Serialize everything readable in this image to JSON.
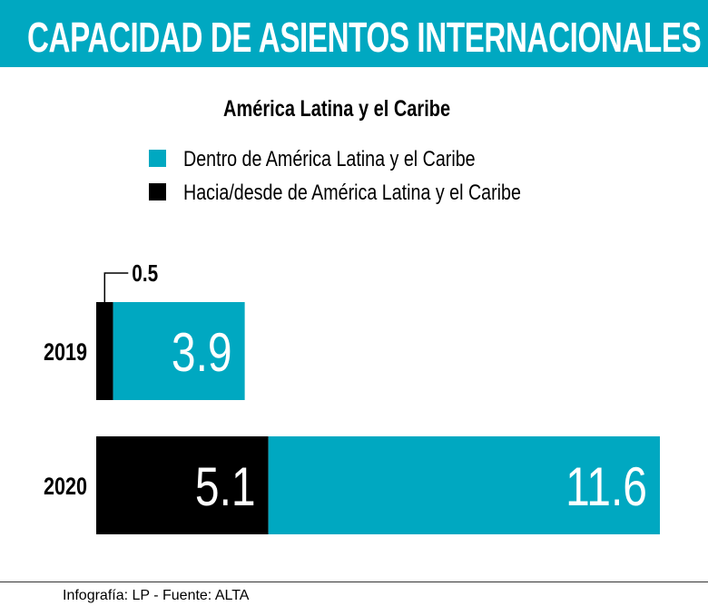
{
  "header": {
    "title": "CAPACIDAD DE ASIENTOS INTERNACIONALES"
  },
  "colors": {
    "teal": "#00a8c1",
    "black": "#000000"
  },
  "chart_data": {
    "type": "bar",
    "orientation": "horizontal",
    "stacked": true,
    "title": "América Latina y el Caribe",
    "categories": [
      "2019",
      "2020"
    ],
    "series": [
      {
        "name": "Hacia/desde de América Latina y el Caribe",
        "color": "#000000",
        "values": [
          0.5,
          5.1
        ],
        "labels": [
          "0.5",
          "5.1"
        ]
      },
      {
        "name": "Dentro de América Latina y el Caribe",
        "color": "#00a8c1",
        "values": [
          3.9,
          11.6
        ],
        "labels": [
          "3.9",
          "11.6"
        ]
      }
    ],
    "legend": [
      "Dentro de América Latina y el Caribe",
      "Hacia/desde de América Latina y el Caribe"
    ],
    "legend_placement": "top",
    "grid": false
  },
  "footer": {
    "source": "Infografía: LP - Fuente: ALTA"
  }
}
